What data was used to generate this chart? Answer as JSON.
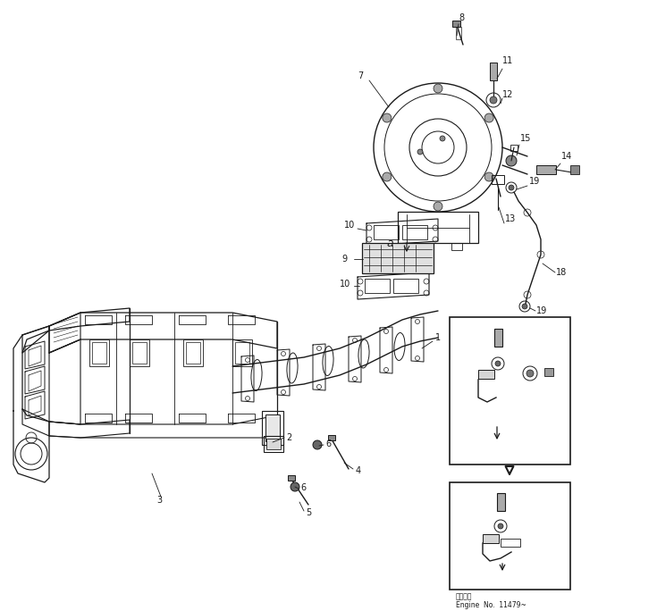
{
  "bg_color": "#ffffff",
  "line_color": "#1a1a1a",
  "fig_width": 7.35,
  "fig_height": 6.84,
  "dpi": 100,
  "footer_text1": "適用番号",
  "footer_text2": "Engine  No.  11479~"
}
